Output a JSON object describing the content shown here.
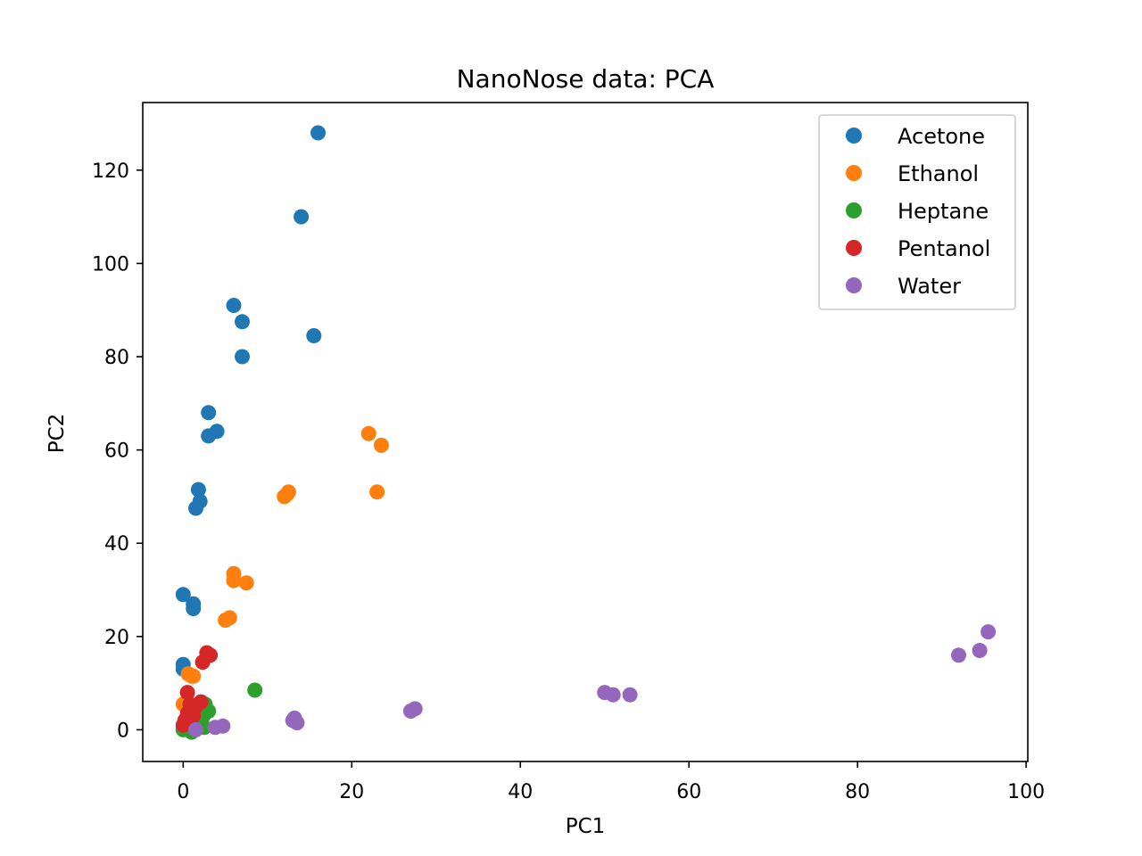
{
  "chart_data": {
    "type": "scatter",
    "title": "NanoNose data: PCA",
    "xlabel": "PC1",
    "ylabel": "PC2",
    "xlim": [
      -4.8,
      100.2
    ],
    "ylim": [
      -6.8,
      134.5
    ],
    "xticks": [
      0,
      20,
      40,
      60,
      80,
      100
    ],
    "yticks": [
      0,
      20,
      40,
      60,
      80,
      100,
      120
    ],
    "grid": false,
    "legend_position": "top-right",
    "series": [
      {
        "name": "Acetone",
        "color": "#1f77b4",
        "points": [
          [
            16,
            128
          ],
          [
            14,
            110
          ],
          [
            6,
            91
          ],
          [
            7,
            87.5
          ],
          [
            15.5,
            84.5
          ],
          [
            7,
            80
          ],
          [
            3,
            68
          ],
          [
            4,
            64
          ],
          [
            3,
            63
          ],
          [
            1.8,
            51.5
          ],
          [
            2,
            49
          ],
          [
            1.5,
            47.5
          ],
          [
            0,
            29
          ],
          [
            1.2,
            27
          ],
          [
            1.2,
            26
          ],
          [
            0,
            14
          ],
          [
            0,
            13
          ]
        ]
      },
      {
        "name": "Ethanol",
        "color": "#ff7f0e",
        "points": [
          [
            22,
            63.5
          ],
          [
            23.5,
            61
          ],
          [
            23,
            51
          ],
          [
            12.5,
            51
          ],
          [
            12.3,
            50.5
          ],
          [
            12,
            50
          ],
          [
            6,
            33.5
          ],
          [
            6,
            32
          ],
          [
            7.5,
            31.5
          ],
          [
            5.5,
            24
          ],
          [
            5,
            23.5
          ],
          [
            0.6,
            12
          ],
          [
            1,
            11.5
          ],
          [
            1.2,
            11.5
          ],
          [
            0,
            5.5
          ]
        ]
      },
      {
        "name": "Heptane",
        "color": "#2ca02c",
        "points": [
          [
            8.5,
            8.5
          ],
          [
            2.6,
            5.5
          ],
          [
            3,
            4
          ],
          [
            2.4,
            3
          ],
          [
            1.5,
            2
          ],
          [
            2.5,
            0.5
          ],
          [
            0.8,
            1
          ],
          [
            1.2,
            0
          ],
          [
            1,
            -0.5
          ],
          [
            0,
            0
          ]
        ]
      },
      {
        "name": "Pentanol",
        "color": "#d62728",
        "points": [
          [
            2.8,
            16.5
          ],
          [
            3.2,
            16
          ],
          [
            2.3,
            14.5
          ],
          [
            0.5,
            8
          ],
          [
            2.1,
            6
          ],
          [
            1.5,
            5
          ],
          [
            0.8,
            5.5
          ],
          [
            0.5,
            3.5
          ],
          [
            1.2,
            3
          ],
          [
            0.2,
            2
          ],
          [
            0,
            1
          ]
        ]
      },
      {
        "name": "Water",
        "color": "#9467bd",
        "points": [
          [
            95.5,
            21
          ],
          [
            94.5,
            17
          ],
          [
            92,
            16
          ],
          [
            50,
            8
          ],
          [
            51,
            7.5
          ],
          [
            53,
            7.5
          ],
          [
            27.5,
            4.5
          ],
          [
            27,
            4
          ],
          [
            13.2,
            2.5
          ],
          [
            13,
            2
          ],
          [
            13.5,
            1.5
          ],
          [
            4.7,
            0.8
          ],
          [
            3.8,
            0.5
          ],
          [
            1.5,
            0
          ]
        ]
      }
    ]
  }
}
